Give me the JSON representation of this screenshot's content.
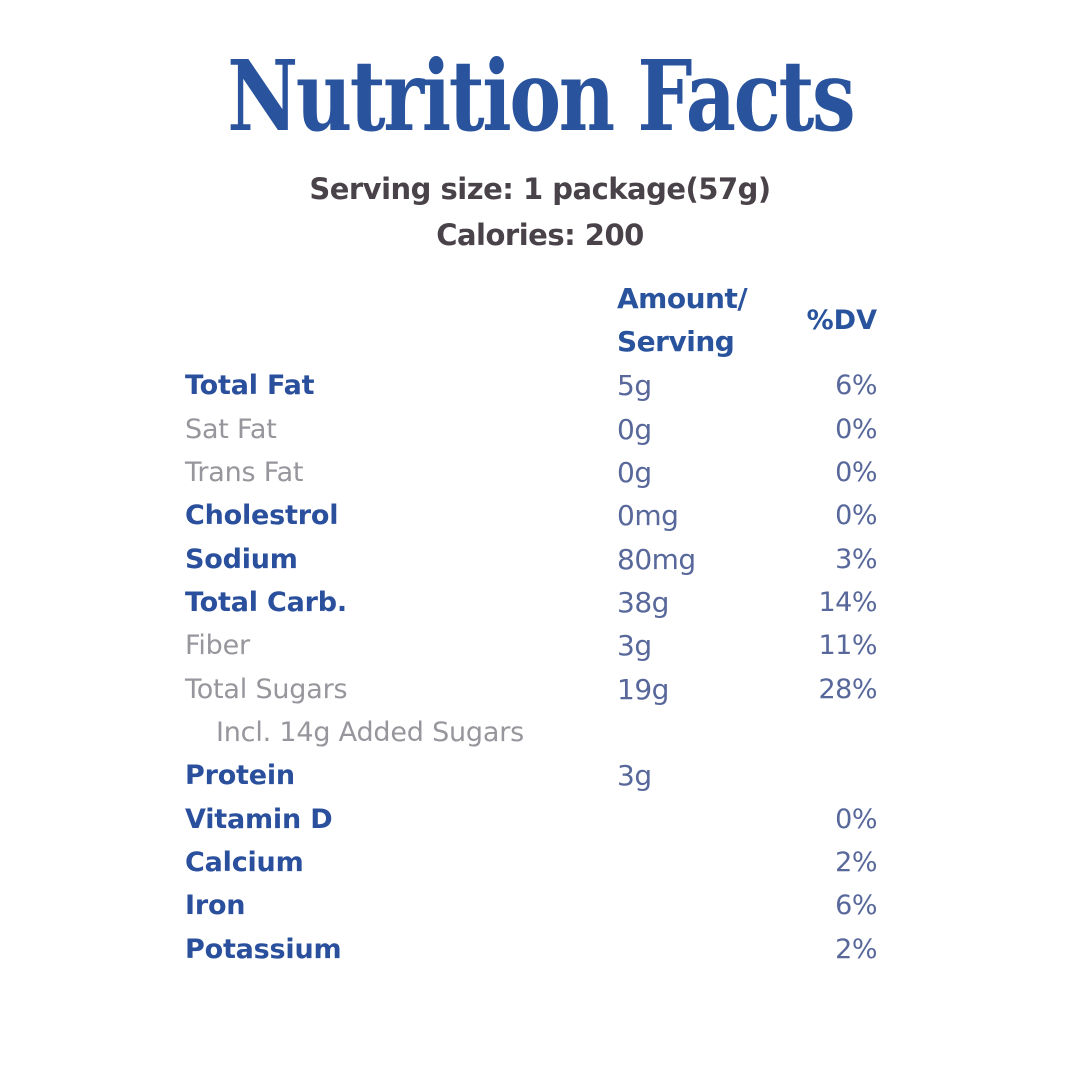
{
  "label": {
    "title": "Nutrition Facts",
    "serving_line": "Serving size: 1 package(57g)",
    "calories_line": "Calories: 200"
  },
  "table": {
    "amount_header_line1": "Amount/",
    "amount_header_line2": "Serving",
    "dv_header": "%DV",
    "rows": [
      {
        "label": "Total Fat",
        "amount": "5g",
        "dv": "6%",
        "style": "bold"
      },
      {
        "label": "Sat Fat",
        "amount": "0g",
        "dv": "0%",
        "style": "gray"
      },
      {
        "label": "Trans Fat",
        "amount": "0g",
        "dv": "0%",
        "style": "gray"
      },
      {
        "label": "Cholestrol",
        "amount": "0mg",
        "dv": "0%",
        "style": "bold"
      },
      {
        "label": "Sodium",
        "amount": "80mg",
        "dv": "3%",
        "style": "bold"
      },
      {
        "label": "Total Carb.",
        "amount": "38g",
        "dv": "14%",
        "style": "bold"
      },
      {
        "label": "Fiber",
        "amount": "3g",
        "dv": "11%",
        "style": "gray"
      },
      {
        "label": "Total Sugars",
        "amount": "19g",
        "dv": "28%",
        "style": "gray"
      },
      {
        "label": "Incl. 14g Added Sugars",
        "amount": "",
        "dv": "",
        "style": "indent"
      },
      {
        "label": "Protein",
        "amount": "3g",
        "dv": "",
        "style": "bold"
      },
      {
        "label": "Vitamin D",
        "amount": "",
        "dv": "0%",
        "style": "bold"
      },
      {
        "label": "Calcium",
        "amount": "",
        "dv": "2%",
        "style": "bold"
      },
      {
        "label": "Iron",
        "amount": "",
        "dv": "6%",
        "style": "bold"
      },
      {
        "label": "Potassium",
        "amount": "",
        "dv": "2%",
        "style": "bold"
      }
    ]
  },
  "colors": {
    "title_blue": "#29539D",
    "bold_label_blue": "#2A4F9C",
    "sub_label_gray": "#96969C",
    "value_slate_blue": "#58689B",
    "serving_charcoal": "#494349",
    "background": "#FFFFFF"
  }
}
